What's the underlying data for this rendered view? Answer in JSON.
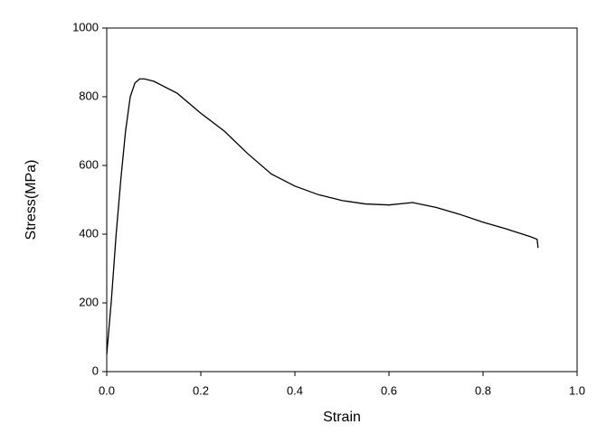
{
  "chart_data": {
    "type": "line",
    "x_label": "Strain",
    "y_label": "Stress(MPa)",
    "x": [
      0.0,
      0.01,
      0.02,
      0.03,
      0.04,
      0.05,
      0.06,
      0.07,
      0.08,
      0.1,
      0.15,
      0.2,
      0.25,
      0.3,
      0.35,
      0.4,
      0.45,
      0.5,
      0.55,
      0.6,
      0.65,
      0.7,
      0.75,
      0.8,
      0.85,
      0.9,
      0.915,
      0.917
    ],
    "series": [
      {
        "color": "#000000",
        "values": [
          50,
          210,
          400,
          560,
          700,
          800,
          840,
          852,
          852,
          845,
          810,
          752,
          700,
          634,
          575,
          540,
          515,
          498,
          488,
          485,
          492,
          478,
          458,
          435,
          415,
          393,
          385,
          360
        ]
      }
    ],
    "xlim": [
      0,
      1
    ],
    "xticks": [
      {
        "value": 0,
        "label": "0.0"
      },
      {
        "value": 0.2,
        "label": "0.2"
      },
      {
        "value": 0.4,
        "label": "0.4"
      },
      {
        "value": 0.6,
        "label": "0.6"
      },
      {
        "value": 0.8,
        "label": "0.8"
      },
      {
        "value": 1,
        "label": "1.0"
      }
    ],
    "ylim": [
      0,
      1000
    ],
    "yticks": [
      0,
      200,
      400,
      600,
      800,
      1000
    ]
  }
}
